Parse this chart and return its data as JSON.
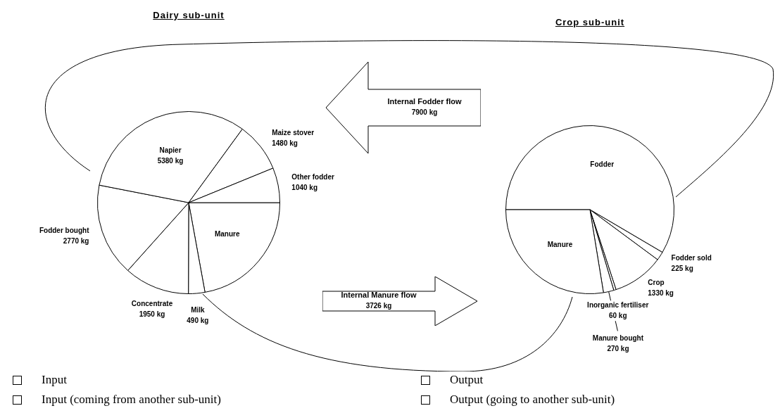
{
  "chart_data": [
    {
      "type": "pie",
      "title": "Dairy sub-unit",
      "categories": [
        "Manure",
        "Milk",
        "Concentrate",
        "Fodder bought",
        "Napier",
        "Maize stover",
        "Other fodder"
      ],
      "values": [
        3726,
        490,
        1950,
        2770,
        5380,
        1480,
        1040
      ],
      "colors": [
        "#ffffff",
        "#ffffff",
        "#ffffff",
        "#ffffff",
        "#ffffff",
        "#ffffff",
        "#ffffff"
      ],
      "value_labels": [
        null,
        "490 kg",
        "1950 kg",
        "2770 kg",
        "5380 kg",
        "1480 kg",
        "1040 kg"
      ],
      "annotations": [
        "Internal Manure flow",
        "3726 kg",
        "Input",
        "Input (coming from another sub-unit)"
      ]
    },
    {
      "type": "pie",
      "title": "Crop sub-unit",
      "categories": [
        "Fodder",
        "Fodder sold",
        "Crop",
        "Inorganic fertiliser",
        "Manure bought",
        "Manure"
      ],
      "values": [
        7900,
        225,
        1330,
        60,
        270,
        3726
      ],
      "colors": [
        "#ffffff",
        "#ffffff",
        "#ffffff",
        "#ffffff",
        "#ffffff",
        "#ffffff"
      ],
      "value_labels": [
        null,
        "225 kg",
        "1330 kg",
        "60 kg",
        "270 kg",
        null
      ],
      "annotations": [
        "Internal Fodder flow",
        "7900 kg",
        "Output",
        "Output (going to another sub-unit)"
      ]
    }
  ]
}
